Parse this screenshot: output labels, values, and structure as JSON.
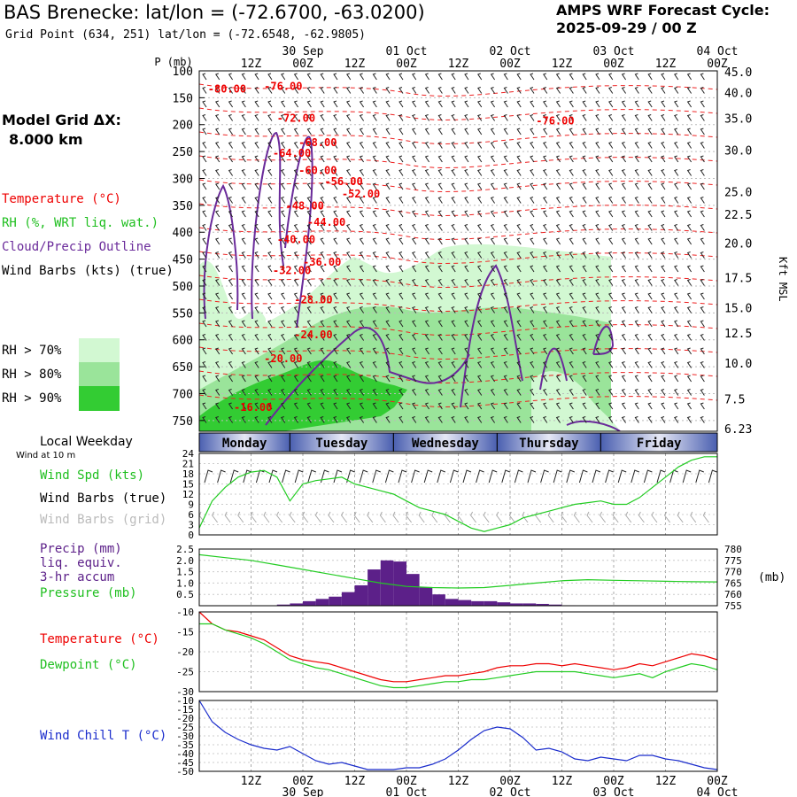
{
  "header": {
    "title": "BAS Brenecke:  lat/lon = (-72.6700, -63.0200)",
    "subtitle": "Grid Point (634, 251) lat/lon = (-72.6548, -62.9805)",
    "cycle_label": "AMPS WRF Forecast Cycle:",
    "cycle_value": "2025-09-29 / 00  Z"
  },
  "left_panel": {
    "model_grid_label": "Model Grid ΔX:",
    "model_grid_value": "8.000 km",
    "legend": {
      "temperature": "Temperature (°C)",
      "rh": "RH (%, WRT liq. wat.)",
      "cloud": "Cloud/Precip Outline",
      "wind": "Wind Barbs (kts) (true)"
    },
    "rh_key": [
      "RH > 70%",
      "RH > 80%",
      "RH > 90%"
    ],
    "rh_key_colors": [
      "#d2f8d2",
      "#9ae49a",
      "#33cc33"
    ],
    "local_weekday": "Local Weekday",
    "wind_at": "Wind at 10 m",
    "wind_legend": [
      "Wind Spd (kts)",
      "Wind Barbs (true)",
      "Wind Barbs (grid)"
    ],
    "precip_legend": [
      "Precip (mm)",
      "liq. equiv.",
      "3-hr accum",
      "Pressure (mb)"
    ],
    "temp_legend": [
      "Temperature (°C)",
      "Dewpoint (°C)"
    ],
    "chill_legend": "Wind Chill T (°C)"
  },
  "time_axis": {
    "ticks": [
      "12Z",
      "00Z",
      "12Z",
      "00Z",
      "12Z",
      "00Z",
      "12Z",
      "00Z",
      "12Z",
      "00Z"
    ],
    "dates": [
      {
        "label": "30 Sep",
        "tick": 1
      },
      {
        "label": "01 Oct",
        "tick": 3
      },
      {
        "label": "02 Oct",
        "tick": 5
      },
      {
        "label": "03 Oct",
        "tick": 7
      },
      {
        "label": "04 Oct",
        "tick": 9
      }
    ],
    "start_hour": 0,
    "end_hour": 120
  },
  "weekdays": [
    "Monday",
    "Tuesday",
    "Wednesday",
    "Thursday",
    "Friday"
  ],
  "chart_data": [
    {
      "type": "heatmap",
      "name": "time-height cross section",
      "ylabel_left": "P (mb)",
      "pressure_ticks": [
        100,
        150,
        200,
        250,
        300,
        350,
        400,
        450,
        500,
        550,
        600,
        650,
        700,
        750
      ],
      "ylim": [
        770,
        100
      ],
      "height_axis_label": "Kft MSL",
      "height_ticks": [
        {
          "p": 102,
          "label": "45.0"
        },
        {
          "p": 140,
          "label": "40.0"
        },
        {
          "p": 188,
          "label": "35.0"
        },
        {
          "p": 247,
          "label": "30.0"
        },
        {
          "p": 325,
          "label": "25.0"
        },
        {
          "p": 367,
          "label": "22.5"
        },
        {
          "p": 420,
          "label": "20.0"
        },
        {
          "p": 484,
          "label": "17.5"
        },
        {
          "p": 540,
          "label": "15.0"
        },
        {
          "p": 587,
          "label": "12.5"
        },
        {
          "p": 643,
          "label": "10.0"
        },
        {
          "p": 710,
          "label": "7.5"
        },
        {
          "p": 765,
          "label": "6.23"
        }
      ],
      "temperature_contour_labels": [
        {
          "label": "-80.00",
          "hour": 2,
          "p": 140
        },
        {
          "label": "-76.00",
          "hour": 15,
          "p": 135
        },
        {
          "label": "-72.00",
          "hour": 18,
          "p": 195
        },
        {
          "label": "-76.00",
          "hour": 78,
          "p": 200
        },
        {
          "label": "-68.00",
          "hour": 23,
          "p": 240
        },
        {
          "label": "-64.00",
          "hour": 17,
          "p": 260
        },
        {
          "label": "-60.00",
          "hour": 23,
          "p": 292
        },
        {
          "label": "-56.00",
          "hour": 29,
          "p": 312
        },
        {
          "label": "-52.00",
          "hour": 33,
          "p": 335
        },
        {
          "label": "-48.00",
          "hour": 20,
          "p": 358
        },
        {
          "label": "-44.00",
          "hour": 25,
          "p": 388
        },
        {
          "label": "-40.00",
          "hour": 18,
          "p": 420
        },
        {
          "label": "-36.00",
          "hour": 24,
          "p": 462
        },
        {
          "label": "-32.00",
          "hour": 17,
          "p": 478
        },
        {
          "label": "-28.00",
          "hour": 22,
          "p": 532
        },
        {
          "label": "-24.00",
          "hour": 22,
          "p": 597
        },
        {
          "label": "-20.00",
          "hour": 15,
          "p": 642
        },
        {
          "label": "-16.00",
          "hour": 8,
          "p": 732
        }
      ]
    },
    {
      "type": "line",
      "name": "10 m wind speed",
      "ylim": [
        0,
        24
      ],
      "yticks": [
        0,
        3,
        6,
        9,
        12,
        15,
        18,
        21,
        24
      ],
      "hours": [
        0,
        3,
        6,
        9,
        12,
        15,
        18,
        21,
        24,
        27,
        30,
        33,
        36,
        39,
        42,
        45,
        48,
        51,
        54,
        57,
        60,
        63,
        66,
        69,
        72,
        75,
        78,
        81,
        84,
        87,
        90,
        93,
        96,
        99,
        102,
        105,
        108,
        111,
        114,
        117,
        120
      ],
      "series": [
        {
          "name": "Wind Spd (kts)",
          "color": "#22cc22",
          "values": [
            2,
            10,
            14,
            17,
            18.5,
            19,
            17,
            10,
            15,
            16,
            16.5,
            17,
            15,
            14,
            13,
            12,
            10,
            8,
            7,
            6,
            4,
            2,
            1,
            2,
            3,
            5,
            6,
            7,
            8,
            9,
            9.5,
            10,
            9,
            9,
            11,
            14,
            17,
            20,
            22,
            23,
            23
          ]
        }
      ]
    },
    {
      "type": "bar",
      "name": "3-hr precip and pressure",
      "ylim_left": [
        0,
        2.5
      ],
      "yticks_left": [
        "0.5",
        "1.0",
        "1.5",
        "2.0",
        "2.5"
      ],
      "ylim_right": [
        755,
        780
      ],
      "yticks_right": [
        755,
        760,
        765,
        770,
        775,
        780
      ],
      "right_unit": "(mb)",
      "bar_hours": [
        0,
        3,
        6,
        9,
        12,
        15,
        18,
        21,
        24,
        27,
        30,
        33,
        36,
        39,
        42,
        45,
        48,
        51,
        54,
        57,
        60,
        63,
        66,
        69,
        72,
        75,
        78,
        81,
        84,
        87,
        90,
        93,
        96,
        99,
        102,
        105,
        108,
        111,
        114,
        117
      ],
      "precip": [
        0,
        0,
        0,
        0,
        0,
        0,
        0.05,
        0.1,
        0.2,
        0.3,
        0.4,
        0.6,
        0.9,
        1.6,
        2.0,
        1.95,
        1.4,
        0.8,
        0.5,
        0.3,
        0.25,
        0.2,
        0.2,
        0.15,
        0.1,
        0.1,
        0.08,
        0.05,
        0.02,
        0,
        0,
        0,
        0,
        0,
        0,
        0,
        0,
        0,
        0,
        0
      ],
      "precip_color": "#5c2089",
      "pressure_hours": [
        0,
        6,
        12,
        18,
        24,
        30,
        36,
        42,
        48,
        54,
        60,
        66,
        72,
        78,
        84,
        90,
        96,
        102,
        108,
        114,
        120
      ],
      "pressure": [
        777.5,
        776.2,
        775,
        773,
        771,
        769,
        767,
        765,
        763.5,
        763,
        762.8,
        763,
        764,
        765,
        766,
        766.5,
        766.2,
        766,
        765.8,
        765.6,
        765.5
      ],
      "pressure_color": "#22cc22"
    },
    {
      "type": "line",
      "name": "temperature and dewpoint",
      "ylim": [
        -30,
        -10
      ],
      "yticks": [
        -10,
        -15,
        -20,
        -25,
        -30
      ],
      "hours": [
        0,
        3,
        6,
        9,
        12,
        15,
        18,
        21,
        24,
        27,
        30,
        33,
        36,
        39,
        42,
        45,
        48,
        51,
        54,
        57,
        60,
        63,
        66,
        69,
        72,
        75,
        78,
        81,
        84,
        87,
        90,
        93,
        96,
        99,
        102,
        105,
        108,
        111,
        114,
        117,
        120
      ],
      "series": [
        {
          "name": "Temperature (°C)",
          "color": "#ee0000",
          "values": [
            -10,
            -13,
            -14.5,
            -15,
            -16,
            -17,
            -19,
            -21,
            -22,
            -22.5,
            -23,
            -24,
            -25,
            -26,
            -27,
            -27.5,
            -27.5,
            -27,
            -26.5,
            -26,
            -26,
            -25.5,
            -25,
            -24,
            -23.5,
            -23.5,
            -23,
            -23,
            -23.5,
            -23,
            -23.5,
            -24,
            -24.5,
            -24,
            -23,
            -23.5,
            -22.5,
            -21.5,
            -20.5,
            -21,
            -22
          ]
        },
        {
          "name": "Dewpoint (°C)",
          "color": "#22cc22",
          "values": [
            -13,
            -13,
            -14.5,
            -15.5,
            -16.5,
            -18,
            -20,
            -22,
            -23,
            -24,
            -24.5,
            -25.5,
            -26.5,
            -27.5,
            -28.5,
            -29,
            -29,
            -28.5,
            -28,
            -27.5,
            -27.5,
            -27,
            -27,
            -26.5,
            -26,
            -25.5,
            -25,
            -25,
            -25,
            -25,
            -25.5,
            -26,
            -26.5,
            -26,
            -25.5,
            -26.5,
            -25,
            -24,
            -23,
            -23.5,
            -24.5
          ]
        }
      ]
    },
    {
      "type": "line",
      "name": "wind chill",
      "ylim": [
        -50,
        -10
      ],
      "yticks": [
        -10,
        -15,
        -20,
        -25,
        -30,
        -35,
        -40,
        -45,
        -50
      ],
      "hours": [
        0,
        3,
        6,
        9,
        12,
        15,
        18,
        21,
        24,
        27,
        30,
        33,
        36,
        39,
        42,
        45,
        48,
        51,
        54,
        57,
        60,
        63,
        66,
        69,
        72,
        75,
        78,
        81,
        84,
        87,
        90,
        93,
        96,
        99,
        102,
        105,
        108,
        111,
        114,
        117,
        120
      ],
      "series": [
        {
          "name": "Wind Chill T (°C)",
          "color": "#1a2ccc",
          "values": [
            -10,
            -22,
            -28,
            -32,
            -35,
            -37,
            -38,
            -36,
            -40,
            -44,
            -46,
            -45,
            -47,
            -49,
            -49,
            -49,
            -48,
            -48,
            -46,
            -43,
            -38,
            -32,
            -27,
            -25,
            -26,
            -31,
            -38,
            -37,
            -39,
            -43,
            -44,
            -42,
            -43,
            -44,
            -41,
            -41,
            -43,
            -44,
            -46,
            -48,
            -49
          ]
        }
      ]
    }
  ]
}
